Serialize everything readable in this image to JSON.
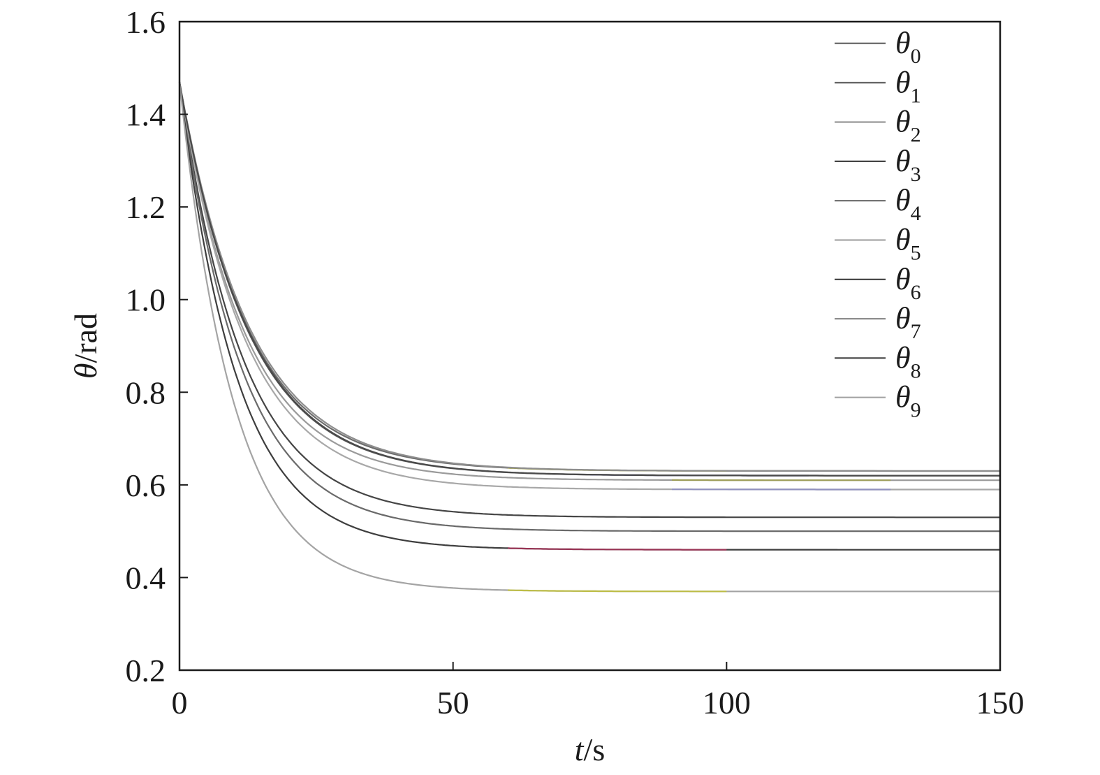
{
  "chart_data": {
    "type": "line",
    "xlabel": {
      "var": "t",
      "unit": "/s"
    },
    "ylabel": {
      "var": "θ",
      "unit": "/rad"
    },
    "xlim": [
      0,
      150
    ],
    "ylim": [
      0.2,
      1.6
    ],
    "xticks": [
      0,
      50,
      100,
      150
    ],
    "yticks": [
      0.2,
      0.4,
      0.6,
      0.8,
      1.0,
      1.2,
      1.4,
      1.6
    ],
    "xtick_labels": [
      "0",
      "50",
      "100",
      "150"
    ],
    "ytick_labels": [
      "0.2",
      "0.4",
      "0.6",
      "0.8",
      "1.0",
      "1.2",
      "1.4",
      "1.6"
    ],
    "grid": false,
    "legend_position": "top-right",
    "y0": 1.47,
    "series": [
      {
        "symbol": "θ",
        "sub": "0",
        "steady": 0.63,
        "tau": 12.5,
        "color": "#6d6d6d",
        "accent": "#b8b830"
      },
      {
        "symbol": "θ",
        "sub": "1",
        "steady": 0.62,
        "tau": 12.5,
        "color": "#555555",
        "accent": "#4040a0"
      },
      {
        "symbol": "θ",
        "sub": "2",
        "steady": 0.61,
        "tau": 12.0,
        "color": "#9a9a9a",
        "accent": "#a0a040"
      },
      {
        "symbol": "θ",
        "sub": "3",
        "steady": 0.53,
        "tau": 11.5,
        "color": "#454545",
        "accent": "#454545"
      },
      {
        "symbol": "θ",
        "sub": "4",
        "steady": 0.5,
        "tau": 11.2,
        "color": "#6a6a6a",
        "accent": "#6a6a6a"
      },
      {
        "symbol": "θ",
        "sub": "5",
        "steady": 0.59,
        "tau": 12.0,
        "color": "#a8a8a8",
        "accent": "#8888c8"
      },
      {
        "symbol": "θ",
        "sub": "6",
        "steady": 0.46,
        "tau": 10.5,
        "color": "#3e3e3e",
        "accent": "#c03060"
      },
      {
        "symbol": "θ",
        "sub": "7",
        "steady": 0.63,
        "tau": 12.8,
        "color": "#8e8e8e",
        "accent": "#8e8e8e"
      },
      {
        "symbol": "θ",
        "sub": "8",
        "steady": 0.62,
        "tau": 12.6,
        "color": "#4a4a4a",
        "accent": "#4a4a4a"
      },
      {
        "symbol": "θ",
        "sub": "9",
        "steady": 0.37,
        "tau": 10.0,
        "color": "#a4a4a4",
        "accent": "#c8c820"
      }
    ]
  }
}
